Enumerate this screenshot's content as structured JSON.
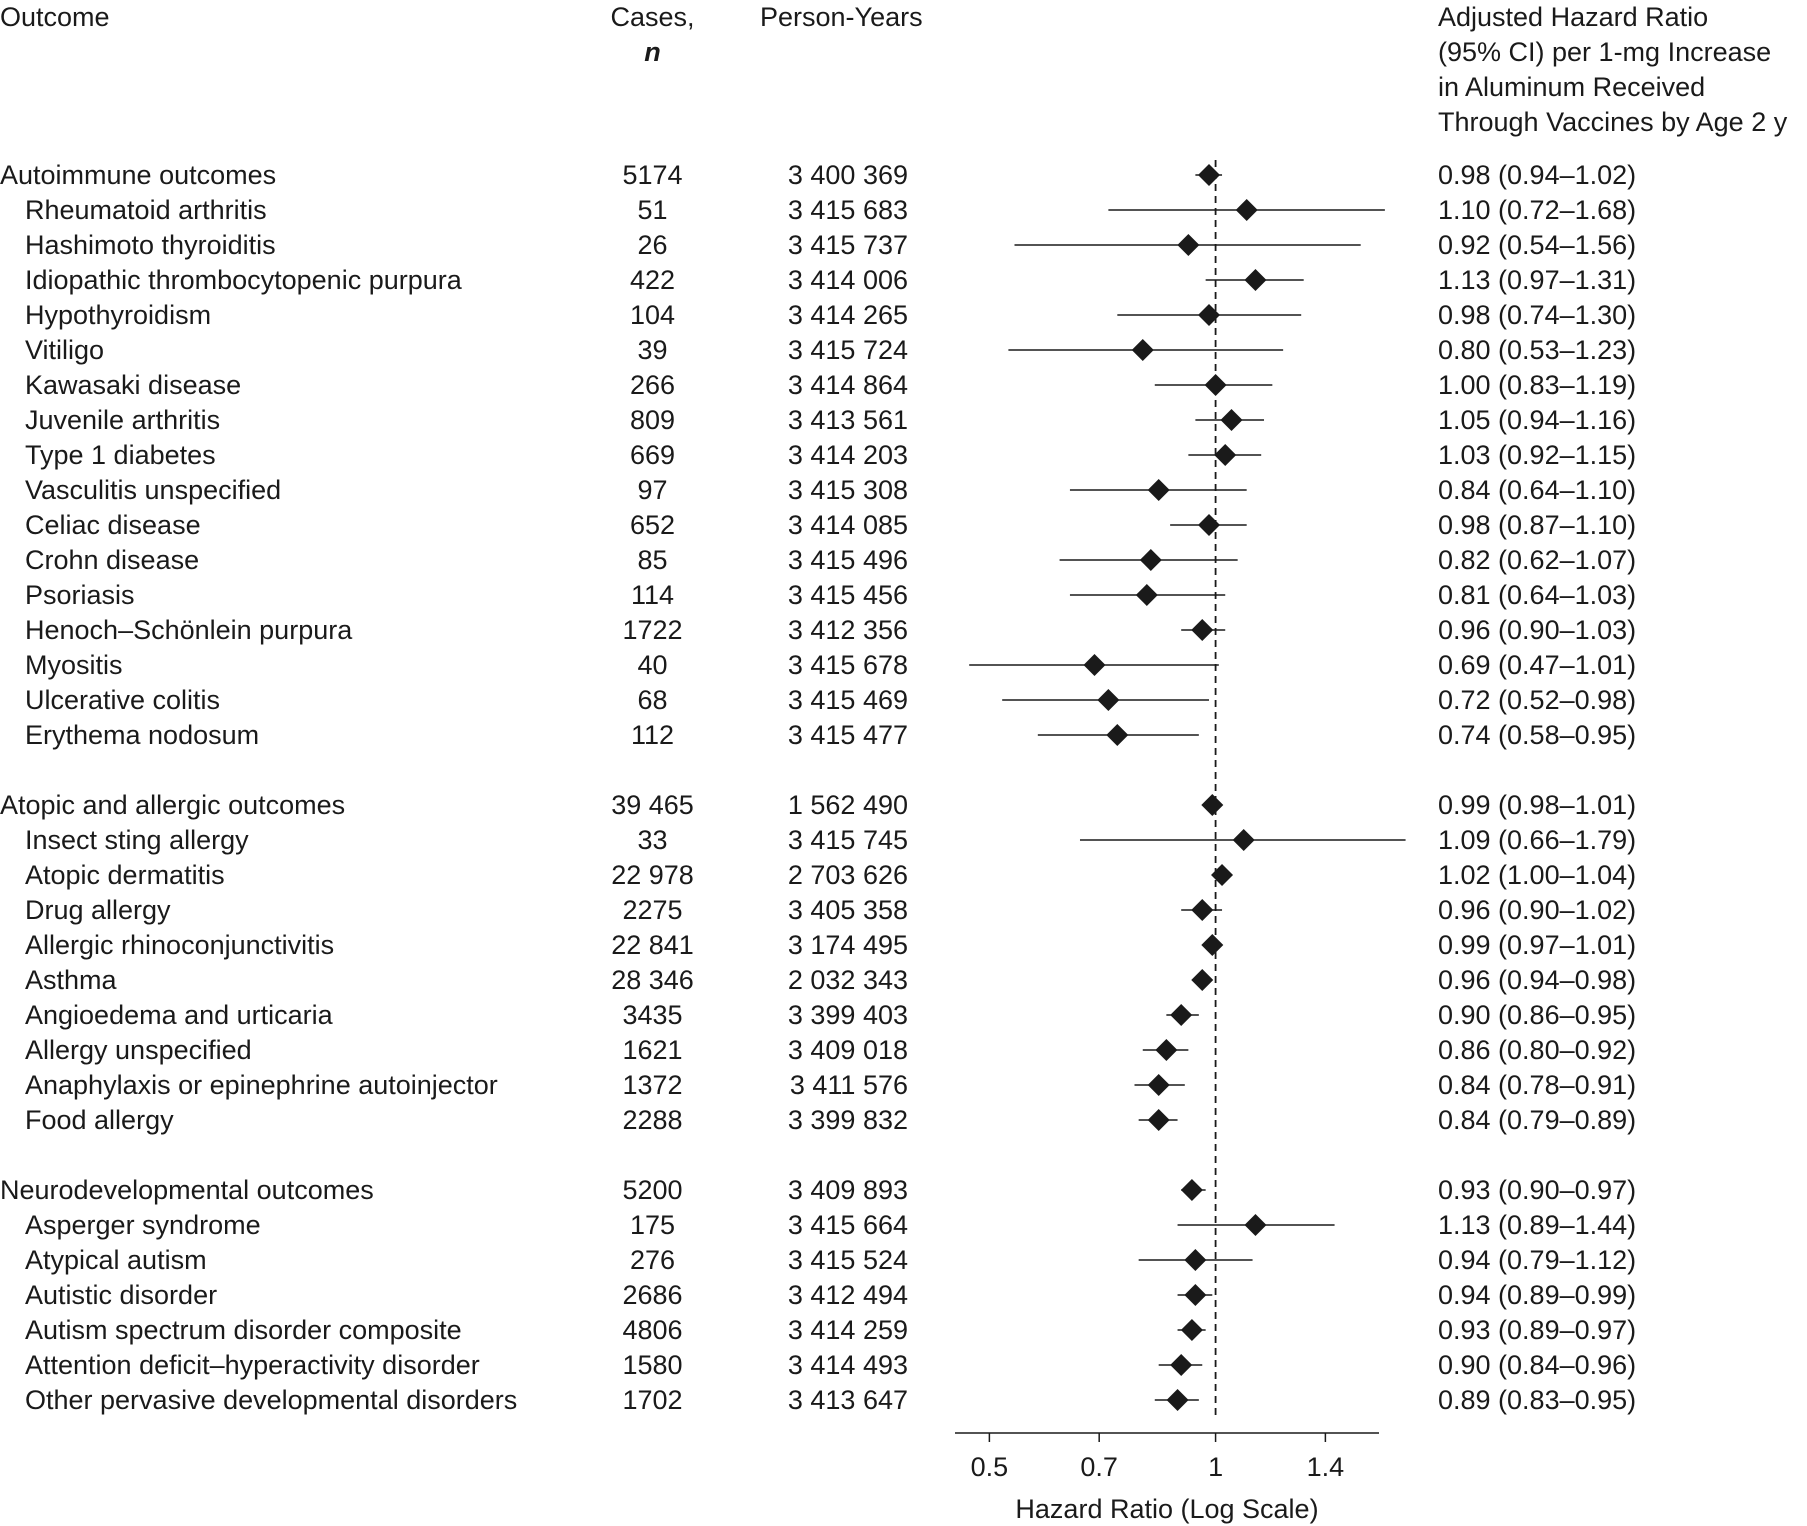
{
  "headers": {
    "outcome": "Outcome",
    "cases": "Cases,",
    "cases_sub": "n",
    "person_years": "Person-Years",
    "hr_lines": [
      "Adjusted Hazard Ratio",
      "(95% CI) per 1-mg Increase",
      "in Aluminum Received",
      "Through Vaccines by Age 2 y"
    ]
  },
  "chart_data": {
    "type": "forest",
    "xlabel": "Hazard Ratio (Log Scale)",
    "x_scale": "log",
    "xlim": [
      0.45,
      1.65
    ],
    "xticks": [
      0.5,
      0.7,
      1,
      1.4
    ],
    "xtick_labels": [
      "0.5",
      "0.7",
      "1",
      "1.4"
    ],
    "reference_line": 1,
    "grid": false,
    "groups": [
      {
        "name": "Autoimmune outcomes",
        "cases": "5174",
        "person_years": "3 400 369",
        "hr": 0.98,
        "lo": 0.94,
        "hi": 1.02,
        "hr_text": "0.98 (0.94–1.02)",
        "items": [
          {
            "name": "Rheumatoid arthritis",
            "cases": "51",
            "person_years": "3 415 683",
            "hr": 1.1,
            "lo": 0.72,
            "hi": 1.68,
            "hr_text": "1.10 (0.72–1.68)"
          },
          {
            "name": "Hashimoto thyroiditis",
            "cases": "26",
            "person_years": "3 415 737",
            "hr": 0.92,
            "lo": 0.54,
            "hi": 1.56,
            "hr_text": "0.92 (0.54–1.56)"
          },
          {
            "name": "Idiopathic thrombocytopenic purpura",
            "cases": "422",
            "person_years": "3 414 006",
            "hr": 1.13,
            "lo": 0.97,
            "hi": 1.31,
            "hr_text": "1.13 (0.97–1.31)"
          },
          {
            "name": "Hypothyroidism",
            "cases": "104",
            "person_years": "3 414 265",
            "hr": 0.98,
            "lo": 0.74,
            "hi": 1.3,
            "hr_text": "0.98 (0.74–1.30)"
          },
          {
            "name": "Vitiligo",
            "cases": "39",
            "person_years": "3 415 724",
            "hr": 0.8,
            "lo": 0.53,
            "hi": 1.23,
            "hr_text": "0.80 (0.53–1.23)"
          },
          {
            "name": "Kawasaki disease",
            "cases": "266",
            "person_years": "3 414 864",
            "hr": 1.0,
            "lo": 0.83,
            "hi": 1.19,
            "hr_text": "1.00 (0.83–1.19)"
          },
          {
            "name": "Juvenile arthritis",
            "cases": "809",
            "person_years": "3 413 561",
            "hr": 1.05,
            "lo": 0.94,
            "hi": 1.16,
            "hr_text": "1.05 (0.94–1.16)"
          },
          {
            "name": "Type 1 diabetes",
            "cases": "669",
            "person_years": "3 414 203",
            "hr": 1.03,
            "lo": 0.92,
            "hi": 1.15,
            "hr_text": "1.03 (0.92–1.15)"
          },
          {
            "name": "Vasculitis unspecified",
            "cases": "97",
            "person_years": "3 415 308",
            "hr": 0.84,
            "lo": 0.64,
            "hi": 1.1,
            "hr_text": "0.84 (0.64–1.10)"
          },
          {
            "name": "Celiac disease",
            "cases": "652",
            "person_years": "3 414 085",
            "hr": 0.98,
            "lo": 0.87,
            "hi": 1.1,
            "hr_text": "0.98 (0.87–1.10)"
          },
          {
            "name": "Crohn disease",
            "cases": "85",
            "person_years": "3 415 496",
            "hr": 0.82,
            "lo": 0.62,
            "hi": 1.07,
            "hr_text": "0.82 (0.62–1.07)"
          },
          {
            "name": "Psoriasis",
            "cases": "114",
            "person_years": "3 415 456",
            "hr": 0.81,
            "lo": 0.64,
            "hi": 1.03,
            "hr_text": "0.81 (0.64–1.03)"
          },
          {
            "name": "Henoch–Schönlein purpura",
            "cases": "1722",
            "person_years": "3 412 356",
            "hr": 0.96,
            "lo": 0.9,
            "hi": 1.03,
            "hr_text": "0.96 (0.90–1.03)"
          },
          {
            "name": "Myositis",
            "cases": "40",
            "person_years": "3 415 678",
            "hr": 0.69,
            "lo": 0.47,
            "hi": 1.01,
            "hr_text": "0.69 (0.47–1.01)"
          },
          {
            "name": "Ulcerative colitis",
            "cases": "68",
            "person_years": "3 415 469",
            "hr": 0.72,
            "lo": 0.52,
            "hi": 0.98,
            "hr_text": "0.72 (0.52–0.98)"
          },
          {
            "name": "Erythema nodosum",
            "cases": "112",
            "person_years": "3 415 477",
            "hr": 0.74,
            "lo": 0.58,
            "hi": 0.95,
            "hr_text": "0.74 (0.58–0.95)"
          }
        ]
      },
      {
        "name": "Atopic and allergic outcomes",
        "cases": "39 465",
        "person_years": "1 562 490",
        "hr": 0.99,
        "lo": 0.98,
        "hi": 1.01,
        "hr_text": "0.99 (0.98–1.01)",
        "items": [
          {
            "name": "Insect sting allergy",
            "cases": "33",
            "person_years": "3 415 745",
            "hr": 1.09,
            "lo": 0.66,
            "hi": 1.79,
            "hr_text": "1.09 (0.66–1.79)"
          },
          {
            "name": "Atopic dermatitis",
            "cases": "22 978",
            "person_years": "2 703 626",
            "hr": 1.02,
            "lo": 1.0,
            "hi": 1.04,
            "hr_text": "1.02 (1.00–1.04)"
          },
          {
            "name": "Drug allergy",
            "cases": "2275",
            "person_years": "3 405 358",
            "hr": 0.96,
            "lo": 0.9,
            "hi": 1.02,
            "hr_text": "0.96 (0.90–1.02)"
          },
          {
            "name": "Allergic rhinoconjunctivitis",
            "cases": "22 841",
            "person_years": "3 174 495",
            "hr": 0.99,
            "lo": 0.97,
            "hi": 1.01,
            "hr_text": "0.99 (0.97–1.01)"
          },
          {
            "name": "Asthma",
            "cases": "28 346",
            "person_years": "2 032 343",
            "hr": 0.96,
            "lo": 0.94,
            "hi": 0.98,
            "hr_text": "0.96 (0.94–0.98)"
          },
          {
            "name": "Angioedema and urticaria",
            "cases": "3435",
            "person_years": "3 399 403",
            "hr": 0.9,
            "lo": 0.86,
            "hi": 0.95,
            "hr_text": "0.90 (0.86–0.95)"
          },
          {
            "name": "Allergy unspecified",
            "cases": "1621",
            "person_years": "3 409 018",
            "hr": 0.86,
            "lo": 0.8,
            "hi": 0.92,
            "hr_text": "0.86 (0.80–0.92)"
          },
          {
            "name": "Anaphylaxis or epinephrine autoinjector",
            "cases": "1372",
            "person_years": "3 411 576",
            "hr": 0.84,
            "lo": 0.78,
            "hi": 0.91,
            "hr_text": "0.84 (0.78–0.91)"
          },
          {
            "name": "Food allergy",
            "cases": "2288",
            "person_years": "3 399 832",
            "hr": 0.84,
            "lo": 0.79,
            "hi": 0.89,
            "hr_text": "0.84 (0.79–0.89)"
          }
        ]
      },
      {
        "name": "Neurodevelopmental outcomes",
        "cases": "5200",
        "person_years": "3 409 893",
        "hr": 0.93,
        "lo": 0.9,
        "hi": 0.97,
        "hr_text": "0.93 (0.90–0.97)",
        "items": [
          {
            "name": "Asperger syndrome",
            "cases": "175",
            "person_years": "3 415 664",
            "hr": 1.13,
            "lo": 0.89,
            "hi": 1.44,
            "hr_text": "1.13 (0.89–1.44)"
          },
          {
            "name": "Atypical autism",
            "cases": "276",
            "person_years": "3 415 524",
            "hr": 0.94,
            "lo": 0.79,
            "hi": 1.12,
            "hr_text": "0.94 (0.79–1.12)"
          },
          {
            "name": "Autistic disorder",
            "cases": "2686",
            "person_years": "3 412 494",
            "hr": 0.94,
            "lo": 0.89,
            "hi": 0.99,
            "hr_text": "0.94 (0.89–0.99)"
          },
          {
            "name": "Autism spectrum disorder composite",
            "cases": "4806",
            "person_years": "3 414 259",
            "hr": 0.93,
            "lo": 0.89,
            "hi": 0.97,
            "hr_text": "0.93 (0.89–0.97)"
          },
          {
            "name": "Attention deficit–hyperactivity disorder",
            "cases": "1580",
            "person_years": "3 414 493",
            "hr": 0.9,
            "lo": 0.84,
            "hi": 0.96,
            "hr_text": "0.90 (0.84–0.96)"
          },
          {
            "name": "Other pervasive developmental disorders",
            "cases": "1702",
            "person_years": "3 413 647",
            "hr": 0.89,
            "lo": 0.83,
            "hi": 0.95,
            "hr_text": "0.89 (0.83–0.95)"
          }
        ]
      }
    ]
  }
}
